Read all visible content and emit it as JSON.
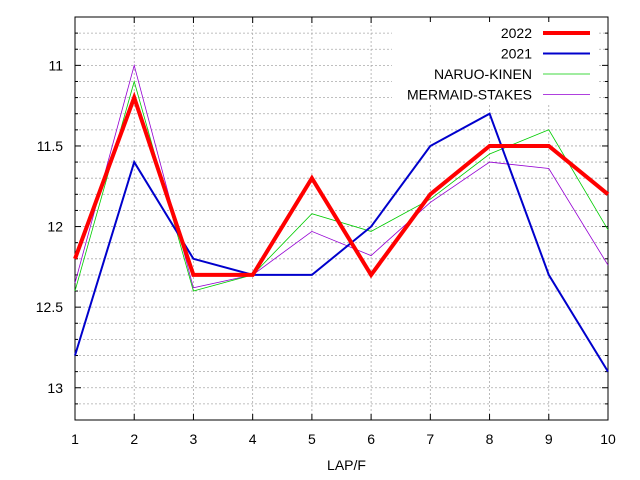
{
  "chart_data": {
    "type": "line",
    "title": "",
    "xlabel": "LAP/F",
    "ylabel": "",
    "x": [
      1,
      2,
      3,
      4,
      5,
      6,
      7,
      8,
      9,
      10
    ],
    "xlim": [
      1,
      10
    ],
    "ylim": [
      13.2,
      10.7
    ],
    "y_inverted": true,
    "y_ticks": [
      "11",
      "11.5",
      "12",
      "12.5",
      "13"
    ],
    "y_tick_values": [
      11,
      11.5,
      12,
      12.5,
      13
    ],
    "x_ticks": [
      "1",
      "2",
      "3",
      "4",
      "5",
      "6",
      "7",
      "8",
      "9",
      "10"
    ],
    "grid": true,
    "legend_position": "top-right",
    "series": [
      {
        "name": "2022",
        "color": "#ff0000",
        "values": [
          12.2,
          11.2,
          12.3,
          12.3,
          11.7,
          12.3,
          11.8,
          11.5,
          11.5,
          11.8
        ]
      },
      {
        "name": "2021",
        "color": "#0000cc",
        "values": [
          12.8,
          11.6,
          12.2,
          12.3,
          12.3,
          12.0,
          11.5,
          11.3,
          12.3,
          12.9
        ]
      },
      {
        "name": "NARUO-KINEN",
        "color": "#00cc00",
        "values": [
          12.4,
          11.1,
          12.4,
          12.3,
          11.92,
          12.03,
          11.83,
          11.55,
          11.4,
          12.02
        ]
      },
      {
        "name": "MERMAID-STAKES",
        "color": "#9400d3",
        "values": [
          12.35,
          11.0,
          12.38,
          12.3,
          12.03,
          12.18,
          11.85,
          11.6,
          11.64,
          12.24
        ]
      }
    ]
  }
}
